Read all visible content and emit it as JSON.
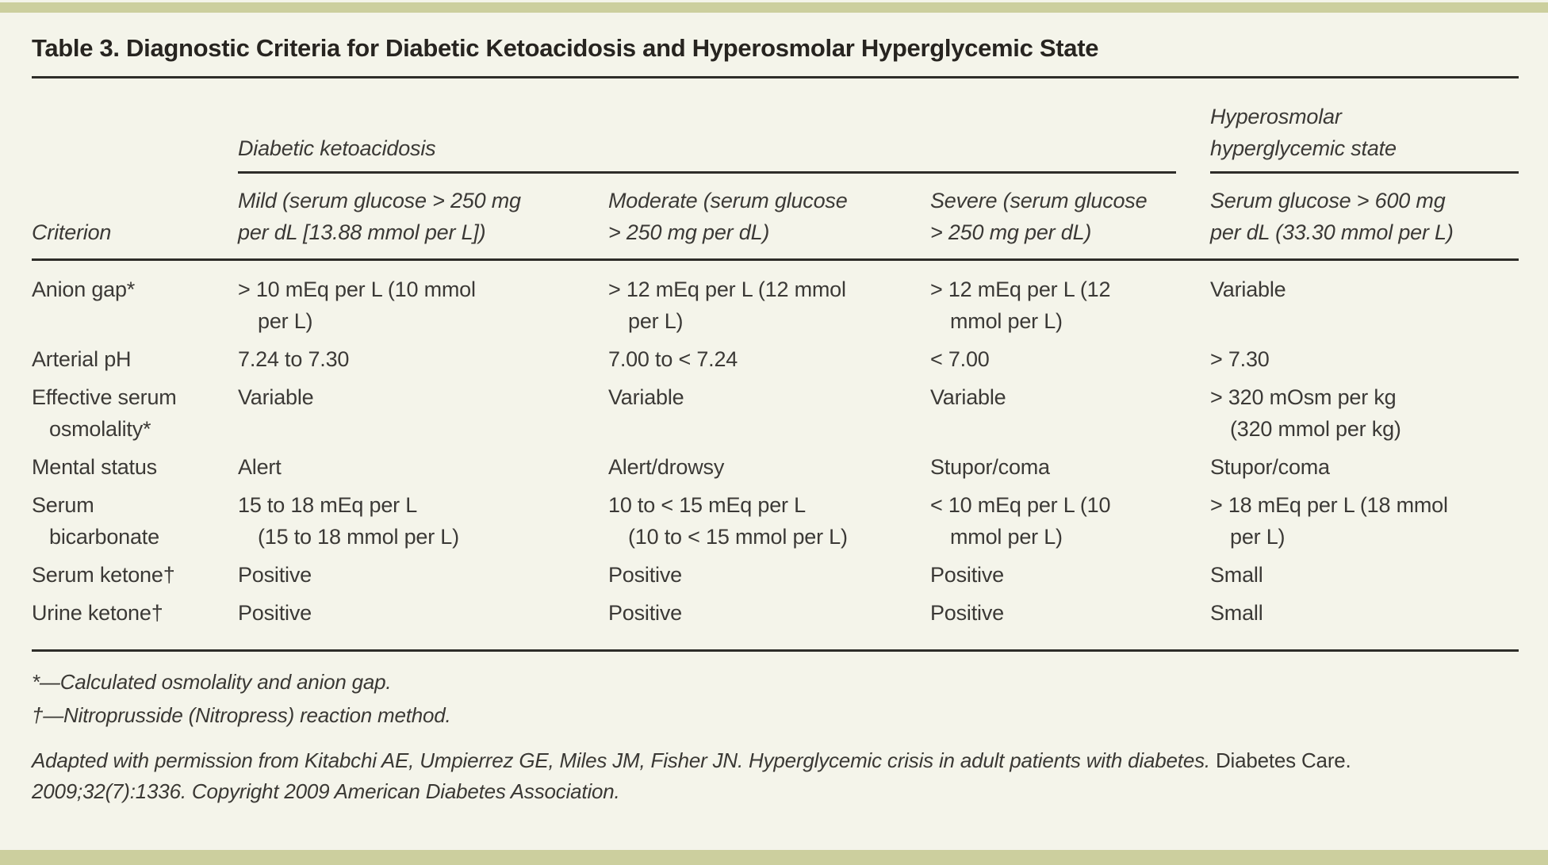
{
  "page": {
    "title": "Table 3. Diagnostic Criteria for Diabetic Ketoacidosis and Hyperosmolar Hyperglycemic State"
  },
  "table": {
    "groups": {
      "dka": "Diabetic ketoacidosis",
      "hhs": "Hyperosmolar\nhyperglycemic state"
    },
    "columns": {
      "criterion": "Criterion",
      "mild": "Mild (serum glucose > 250 mg\nper dL [13.88 mmol per L])",
      "moderate": "Moderate (serum glucose\n> 250 mg per dL)",
      "severe": "Severe (serum glucose\n> 250 mg per dL)",
      "hhs": "Serum glucose > 600 mg\nper dL (33.30 mmol per L)"
    },
    "rows": [
      {
        "criterion": "Anion gap*",
        "mild": "> 10 mEq per L (10 mmol\nper L)",
        "moderate": "> 12 mEq per L (12 mmol\nper L)",
        "severe": "> 12 mEq per L (12\nmmol per L)",
        "hhs": "Variable"
      },
      {
        "criterion": "Arterial pH",
        "mild": "7.24 to 7.30",
        "moderate": "7.00 to < 7.24",
        "severe": "< 7.00",
        "hhs": "> 7.30"
      },
      {
        "criterion": "Effective serum\nosmolality*",
        "mild": "Variable",
        "moderate": "Variable",
        "severe": "Variable",
        "hhs": "> 320 mOsm per kg\n(320 mmol per kg)"
      },
      {
        "criterion": "Mental status",
        "mild": "Alert",
        "moderate": "Alert/drowsy",
        "severe": "Stupor/coma",
        "hhs": "Stupor/coma"
      },
      {
        "criterion": "Serum\nbicarbonate",
        "mild": "15 to 18 mEq per L\n(15 to 18 mmol per L)",
        "moderate": "10 to < 15 mEq per L\n(10 to < 15 mmol per L)",
        "severe": "< 10 mEq per L (10\nmmol per L)",
        "hhs": "> 18 mEq per L (18 mmol\nper L)"
      },
      {
        "criterion": "Serum ketone†",
        "mild": "Positive",
        "moderate": "Positive",
        "severe": "Positive",
        "hhs": "Small"
      },
      {
        "criterion": "Urine ketone†",
        "mild": "Positive",
        "moderate": "Positive",
        "severe": "Positive",
        "hhs": "Small"
      }
    ]
  },
  "footnotes": {
    "asterisk": "*—Calculated osmolality and anion gap.",
    "dagger": "†—Nitroprusside (Nitropress) reaction method."
  },
  "citation": {
    "lead_italic": "Adapted with permission from Kitabchi AE, Umpierrez GE, Miles JM, Fisher JN. Hyperglycemic crisis in adult patients with diabetes.",
    "journal_roman": "Diabetes Care.",
    "tail_italic": "2009;32(7):1336. Copyright 2009 American Diabetes Association."
  },
  "colors": {
    "band": "#cccf9e",
    "background": "#f4f4ea",
    "rule": "#2e2d29",
    "text": "#3b3936"
  }
}
